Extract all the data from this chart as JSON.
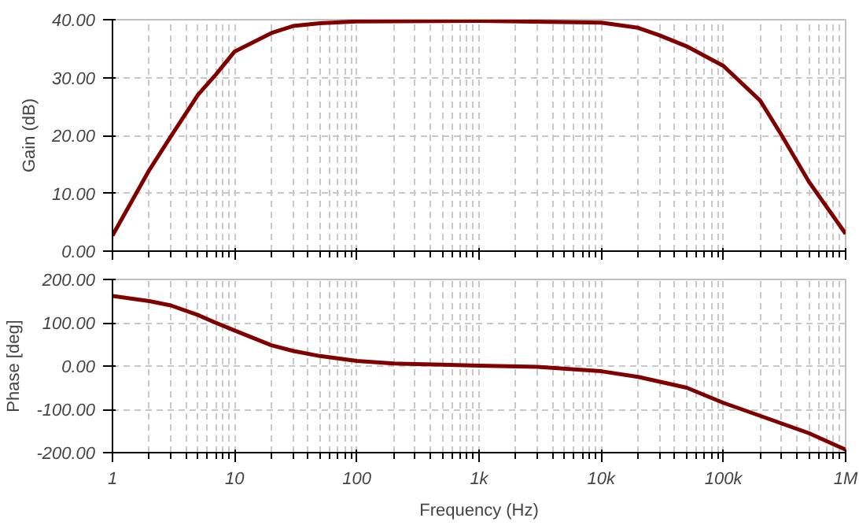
{
  "chart_data": [
    {
      "type": "line",
      "ylabel": "Gain (dB)",
      "x": [
        1,
        2,
        3,
        5,
        7,
        10,
        20,
        30,
        50,
        100,
        1000,
        10000,
        20000,
        30000,
        50000,
        100000,
        200000,
        300000,
        500000,
        1000000
      ],
      "series": [
        {
          "color": "#800000",
          "values": [
            2.7,
            14,
            19.8,
            27,
            30.5,
            34.5,
            37.7,
            38.9,
            39.4,
            39.7,
            39.8,
            39.5,
            38.6,
            37.3,
            35.4,
            32,
            26,
            20,
            12,
            3
          ]
        }
      ],
      "xlim": [
        1,
        1000000
      ],
      "xticks": [
        {
          "value": 1,
          "label": null
        },
        {
          "value": 10,
          "label": null
        },
        {
          "value": 100,
          "label": null
        },
        {
          "value": 1000,
          "label": null
        },
        {
          "value": 10000,
          "label": null
        },
        {
          "value": 100000,
          "label": null
        },
        {
          "value": 1000000,
          "label": null
        }
      ],
      "ylim": [
        0,
        40
      ],
      "yticks": [
        {
          "value": 0,
          "label": "0.00"
        },
        {
          "value": 10,
          "label": "10.00"
        },
        {
          "value": 20,
          "label": "20.00"
        },
        {
          "value": 30,
          "label": "30.00"
        },
        {
          "value": 40,
          "label": "40.00"
        }
      ],
      "log": "x",
      "grid": true,
      "tick_labels": "y",
      "line_style": "solid"
    },
    {
      "type": "line",
      "ylabel": "Phase [deg]",
      "xlabel": "Frequency (Hz)",
      "x": [
        1,
        2,
        3,
        5,
        7,
        10,
        20,
        30,
        50,
        100,
        200,
        500,
        1000,
        3000,
        10000,
        20000,
        50000,
        100000,
        200000,
        500000,
        1000000
      ],
      "series": [
        {
          "color": "#800000",
          "values": [
            162,
            150,
            140,
            118,
            100,
            82,
            48,
            35,
            23,
            12,
            6,
            3,
            1,
            -2,
            -12,
            -25,
            -50,
            -85,
            -115,
            -155,
            -193
          ]
        }
      ],
      "xlim": [
        1,
        1000000
      ],
      "xticks": [
        {
          "value": 1,
          "label": "1"
        },
        {
          "value": 10,
          "label": "10"
        },
        {
          "value": 100,
          "label": "100"
        },
        {
          "value": 1000,
          "label": "1k"
        },
        {
          "value": 10000,
          "label": "10k"
        },
        {
          "value": 100000,
          "label": "100k"
        },
        {
          "value": 1000000,
          "label": "1M"
        }
      ],
      "ylim": [
        -200,
        200
      ],
      "yticks": [
        {
          "value": -200,
          "label": "-200.00"
        },
        {
          "value": -100,
          "label": "-100.00"
        },
        {
          "value": 0,
          "label": "0.00"
        },
        {
          "value": 100,
          "label": "100.00"
        },
        {
          "value": 200,
          "label": "200.00"
        }
      ],
      "log": "x",
      "grid": true,
      "line_style": "solid"
    }
  ]
}
